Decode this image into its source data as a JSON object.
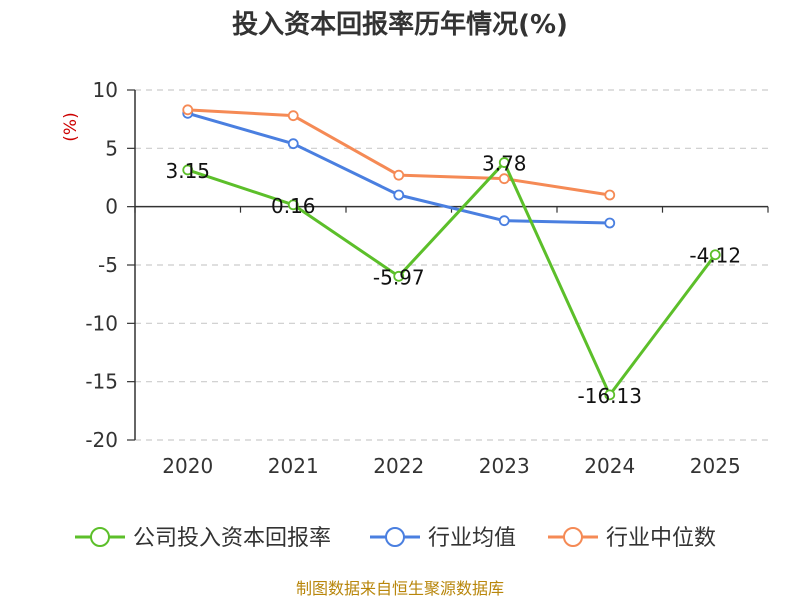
{
  "chart_data": {
    "type": "line",
    "title": "投入资本回报率历年情况(%)",
    "ylabel": "(%)",
    "xlabel": "",
    "categories": [
      "2020",
      "2021",
      "2022",
      "2023",
      "2024",
      "2025"
    ],
    "ylim": [
      -20,
      10
    ],
    "yticks": [
      10,
      5,
      0,
      -5,
      -10,
      -15,
      -20
    ],
    "grid": "horizontal-dashed",
    "legend_position": "bottom",
    "series": [
      {
        "name": "公司投入资本回报率",
        "color": "#5cbf2a",
        "values": [
          3.15,
          0.16,
          -5.97,
          3.78,
          -16.13,
          -4.12
        ],
        "labels": [
          "3.15",
          "0.16",
          "-5.97",
          "3.78",
          "-16.13",
          "-4.12"
        ]
      },
      {
        "name": "行业均值",
        "color": "#4a7fe0",
        "values": [
          8.0,
          5.4,
          1.0,
          -1.2,
          -1.4,
          null
        ]
      },
      {
        "name": "行业中位数",
        "color": "#f58a55",
        "values": [
          8.3,
          7.8,
          2.7,
          2.4,
          1.0,
          null
        ]
      }
    ]
  },
  "footer": {
    "source": "制图数据来自恒生聚源数据库"
  }
}
